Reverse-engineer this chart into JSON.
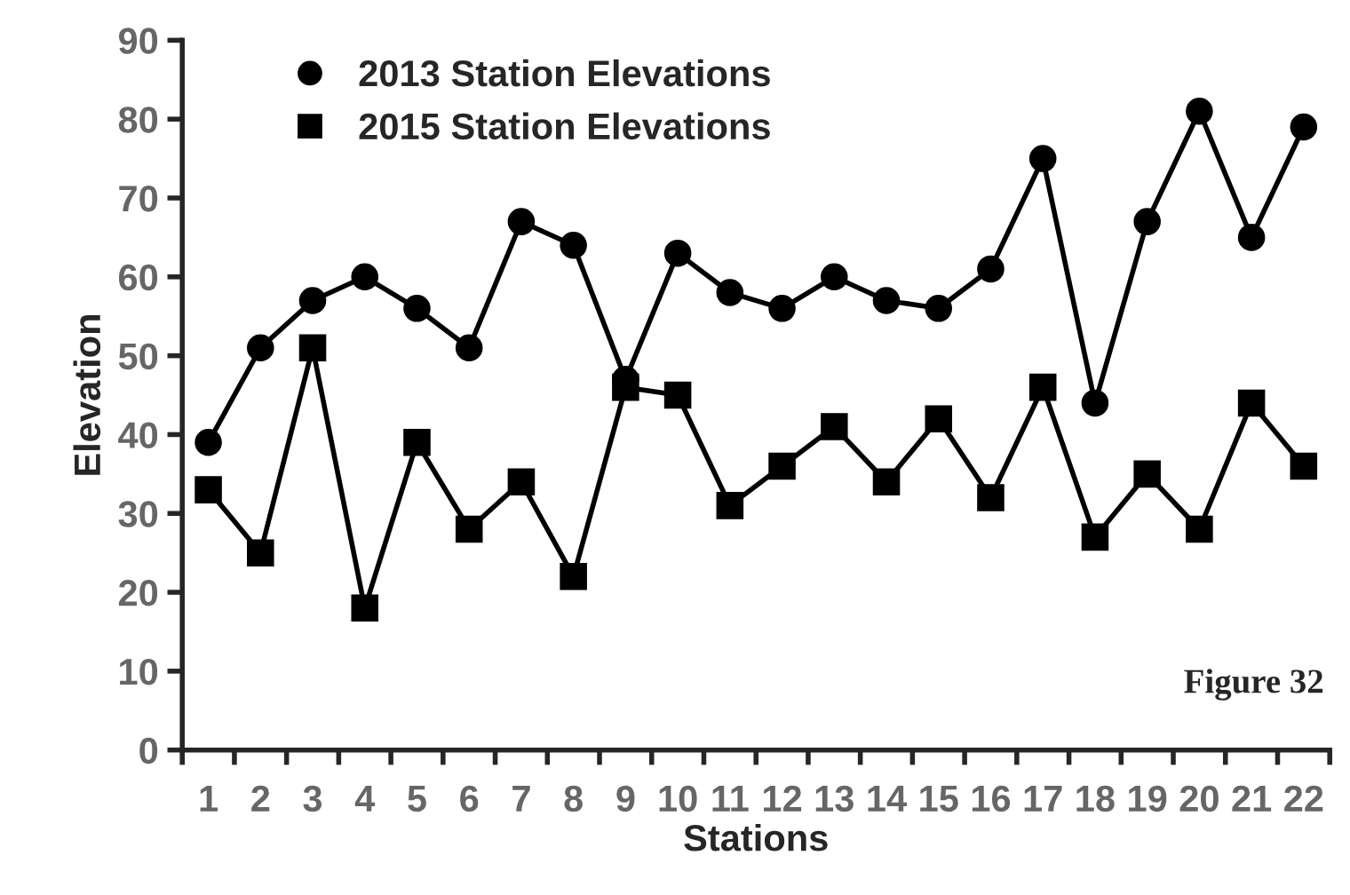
{
  "chart_data": {
    "type": "line",
    "xlabel": "Stations",
    "ylabel": "Elevation",
    "categories": [
      "1",
      "2",
      "3",
      "4",
      "5",
      "6",
      "7",
      "8",
      "9",
      "10",
      "11",
      "12",
      "13",
      "14",
      "15",
      "16",
      "17",
      "18",
      "19",
      "20",
      "21",
      "22"
    ],
    "series": [
      {
        "name": "2013 Station Elevations",
        "color": "#000000",
        "marker": "circle",
        "values": [
          39,
          51,
          57,
          60,
          56,
          51,
          67,
          64,
          47,
          63,
          58,
          56,
          60,
          57,
          56,
          61,
          75,
          44,
          67,
          81,
          65,
          79
        ]
      },
      {
        "name": "2015 Station Elevations",
        "color": "#000000",
        "marker": "square",
        "values": [
          33,
          25,
          51,
          18,
          39,
          28,
          34,
          22,
          46,
          45,
          31,
          36,
          41,
          34,
          42,
          32,
          46,
          27,
          35,
          28,
          44,
          36
        ]
      }
    ],
    "ylim": [
      0,
      90
    ],
    "yticks": [
      0,
      10,
      20,
      30,
      40,
      50,
      60,
      70,
      80,
      90
    ],
    "grid": false,
    "legend": "top left",
    "line_style": "solid",
    "annotations": [
      "Figure 32"
    ]
  }
}
